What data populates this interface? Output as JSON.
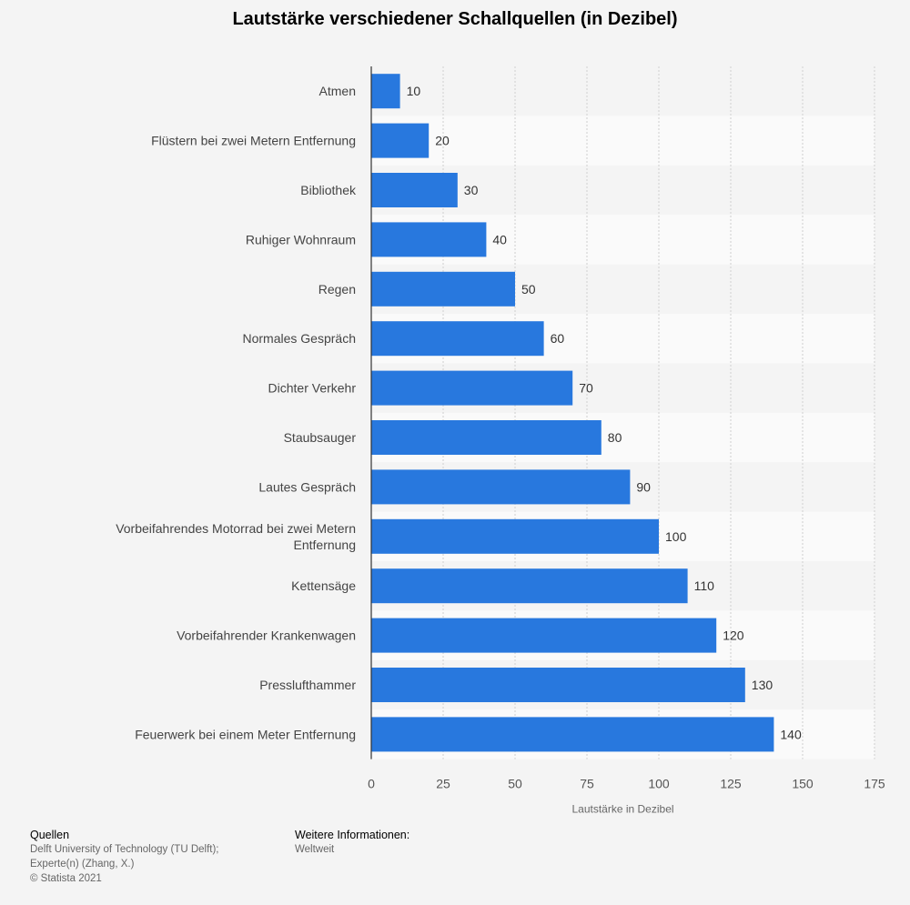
{
  "title": "Lautstärke verschiedener Schallquellen (in Dezibel)",
  "colors": {
    "bar": "#2878de",
    "background": "#f4f4f4",
    "band": "#fafafa",
    "grid": "#cfcfcf"
  },
  "chart_data": {
    "type": "bar",
    "orientation": "horizontal",
    "title": "Lautstärke verschiedener Schallquellen (in Dezibel)",
    "xlabel": "Lautstärke in Dezibel",
    "ylabel": "",
    "xlim": [
      0,
      175
    ],
    "xticks": [
      0,
      25,
      50,
      75,
      100,
      125,
      150,
      175
    ],
    "grid": true,
    "legend": "none",
    "categories": [
      "Atmen",
      "Flüstern bei zwei Metern Entfernung",
      "Bibliothek",
      "Ruhiger Wohnraum",
      "Regen",
      "Normales Gespräch",
      "Dichter Verkehr",
      "Staubsauger",
      "Lautes Gespräch",
      "Vorbeifahrendes Motorrad bei zwei Metern Entfernung",
      "Kettensäge",
      "Vorbeifahrender Krankenwagen",
      "Presslufthammer",
      "Feuerwerk bei einem Meter Entfernung"
    ],
    "values": [
      10,
      20,
      30,
      40,
      50,
      60,
      70,
      80,
      90,
      100,
      110,
      120,
      130,
      140
    ]
  },
  "footer": {
    "sources_heading": "Quellen",
    "sources_lines": [
      "Delft University of Technology (TU Delft);",
      "Experte(n) (Zhang, X.)",
      "© Statista 2021"
    ],
    "info_heading": "Weitere Informationen:",
    "info_lines": [
      "Weltweit"
    ]
  }
}
